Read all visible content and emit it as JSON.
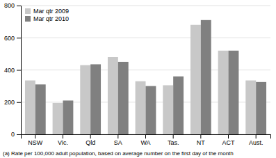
{
  "chart_data": {
    "type": "bar",
    "categories": [
      "NSW",
      "Vic.",
      "Qld",
      "SA",
      "WA",
      "Tas.",
      "NT",
      "ACT",
      "Aust."
    ],
    "series": [
      {
        "name": "Mar qtr 2009",
        "color": "#c8c8c8",
        "values": [
          335,
          195,
          430,
          480,
          330,
          305,
          680,
          520,
          335
        ]
      },
      {
        "name": "Mar qtr 2010",
        "color": "#808080",
        "values": [
          310,
          210,
          435,
          450,
          300,
          360,
          710,
          520,
          325
        ]
      }
    ],
    "ylim": [
      0,
      800
    ],
    "yticks": [
      0,
      200,
      400,
      600,
      800
    ],
    "grid": true,
    "legend": "upper left",
    "footnote": "(a) Rate per 100,000 adult population, based on average number on the first day of the month"
  }
}
